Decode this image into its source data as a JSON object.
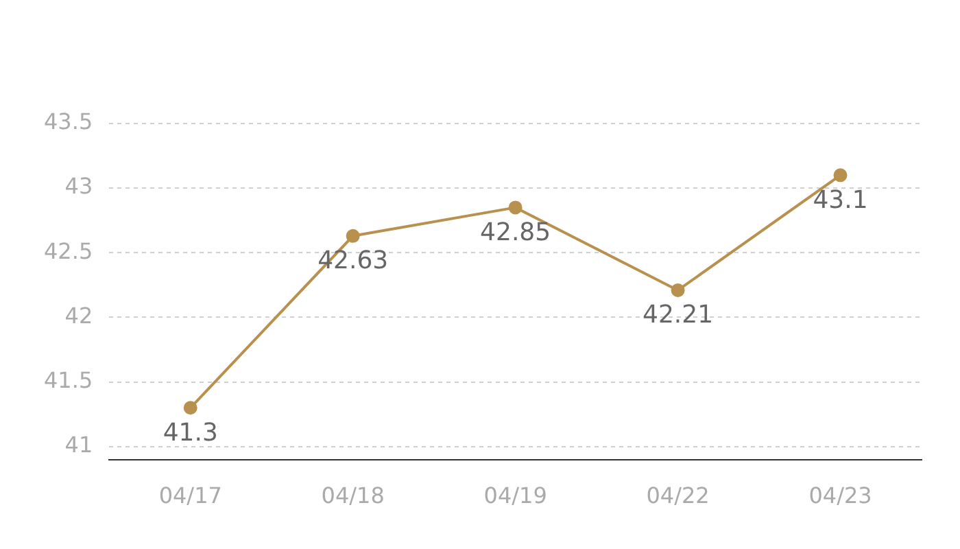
{
  "chart_data": {
    "type": "line",
    "categories": [
      "04/17",
      "04/18",
      "04/19",
      "04/22",
      "04/23"
    ],
    "series": [
      {
        "color": "#b8914f",
        "values": [
          41.3,
          42.63,
          42.85,
          42.21,
          43.1
        ]
      }
    ],
    "ylim": [
      40.9,
      43.5
    ],
    "yticks": [
      41,
      41.5,
      42,
      42.5,
      43,
      43.5
    ],
    "grid": "y",
    "marker": "circle",
    "line_style": "solid",
    "data_labels": true,
    "legend": false
  }
}
